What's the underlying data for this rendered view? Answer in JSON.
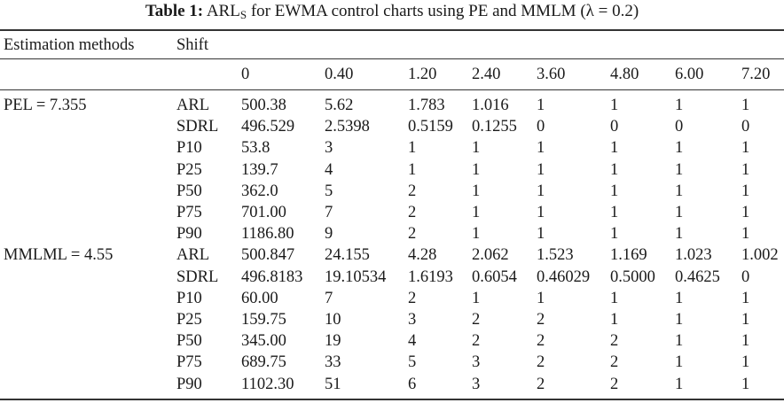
{
  "caption": {
    "label": "Table 1:",
    "arl_base": "ARL",
    "arl_sub": "S",
    "text_before": "for EWMA control charts using PE and MMLM (",
    "lambda": "λ",
    "text_after": " = 0.2)"
  },
  "header": {
    "methods_label": "Estimation methods",
    "shift_label": "Shift",
    "shifts": [
      "0",
      "0.40",
      "1.20",
      "2.40",
      "3.60",
      "4.80",
      "6.00",
      "7.20"
    ]
  },
  "groups": [
    {
      "method": "PEL = 7.355",
      "rows": [
        {
          "stat": "ARL",
          "values": [
            "500.38",
            "5.62",
            "1.783",
            "1.016",
            "1",
            "1",
            "1",
            "1"
          ]
        },
        {
          "stat": "SDRL",
          "values": [
            "496.529",
            "2.5398",
            "0.5159",
            "0.1255",
            "0",
            "0",
            "0",
            "0"
          ]
        },
        {
          "stat": "P10",
          "values": [
            "53.8",
            "3",
            "1",
            "1",
            "1",
            "1",
            "1",
            "1"
          ]
        },
        {
          "stat": "P25",
          "values": [
            "139.7",
            "4",
            "1",
            "1",
            "1",
            "1",
            "1",
            "1"
          ]
        },
        {
          "stat": "P50",
          "values": [
            "362.0",
            "5",
            "2",
            "1",
            "1",
            "1",
            "1",
            "1"
          ]
        },
        {
          "stat": "P75",
          "values": [
            "701.00",
            "7",
            "2",
            "1",
            "1",
            "1",
            "1",
            "1"
          ]
        },
        {
          "stat": "P90",
          "values": [
            "1186.80",
            "9",
            "2",
            "1",
            "1",
            "1",
            "1",
            "1"
          ]
        }
      ]
    },
    {
      "method": "MMLML = 4.55",
      "rows": [
        {
          "stat": "ARL",
          "values": [
            "500.847",
            "24.155",
            "4.28",
            "2.062",
            "1.523",
            "1.169",
            "1.023",
            "1.002"
          ]
        },
        {
          "stat": "SDRL",
          "values": [
            "496.8183",
            "19.10534",
            "1.6193",
            "0.6054",
            "0.46029",
            "0.5000",
            "0.4625",
            "0"
          ]
        },
        {
          "stat": "P10",
          "values": [
            "60.00",
            "7",
            "2",
            "1",
            "1",
            "1",
            "1",
            "1"
          ]
        },
        {
          "stat": "P25",
          "values": [
            "159.75",
            "10",
            "3",
            "2",
            "2",
            "1",
            "1",
            "1"
          ]
        },
        {
          "stat": "P50",
          "values": [
            "345.00",
            "19",
            "4",
            "2",
            "2",
            "2",
            "1",
            "1"
          ]
        },
        {
          "stat": "P75",
          "values": [
            "689.75",
            "33",
            "5",
            "3",
            "2",
            "2",
            "1",
            "1"
          ]
        },
        {
          "stat": "P90",
          "values": [
            "1102.30",
            "51",
            "6",
            "3",
            "2",
            "2",
            "1",
            "1"
          ]
        }
      ]
    }
  ]
}
